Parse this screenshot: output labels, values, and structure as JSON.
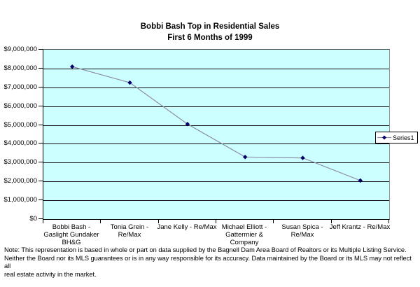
{
  "chart_data": {
    "type": "line",
    "title": "Bobbi Bash Top in Residential Sales",
    "subtitle": "First 6 Months of 1999",
    "categories": [
      "Bobbi Bash -\nGaslight Gundaker\nBH&G",
      "Tonia Grein -\nRe/Max",
      "Jane Kelly - Re/Max",
      "Michael Elliott -\nGattermier &\nCompany",
      "Susan Spica -\nRe/Max",
      "Jeff Krantz - Re/Max"
    ],
    "series": [
      {
        "name": "Series1",
        "values": [
          8100000,
          7250000,
          5050000,
          3300000,
          3250000,
          2050000
        ]
      }
    ],
    "xlabel": "",
    "ylabel": "",
    "ylim": [
      0,
      9000000
    ],
    "ytick_step": 1000000,
    "ytick_labels": [
      "$0",
      "$1,000,000",
      "$2,000,000",
      "$3,000,000",
      "$4,000,000",
      "$5,000,000",
      "$6,000,000",
      "$7,000,000",
      "$8,000,000",
      "$9,000,000"
    ],
    "grid": true,
    "legend_position": "right",
    "marker": "diamond",
    "colors": {
      "plot_bg": "#CCFFFF",
      "line": "#8E8EA8",
      "marker": "#000066",
      "gridline": "#111111",
      "text": "#000000"
    }
  },
  "footnote": {
    "text": "Note: This representation is based in whole or part on data supplied by the Bagnell Dam Area Board of Realtors or its Multiple Listing Service.\nNeither the Board nor its MLS guarantees or is in any way responsible for its accuracy. Data maintained by the Board or its MLS may not reflect all\nreal estate activity in the market."
  }
}
